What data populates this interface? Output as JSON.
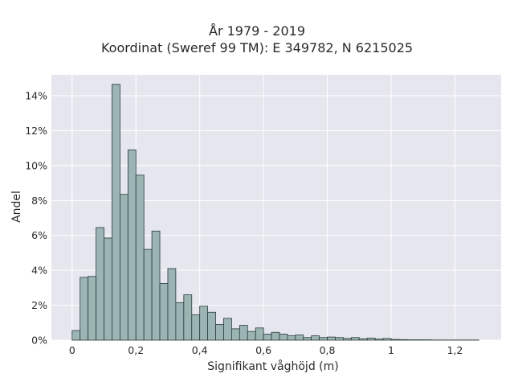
{
  "chart_data": {
    "type": "bar",
    "title_lines": [
      "År 1979 - 2019",
      "Koordinat (Sweref 99 TM): E 349782, N 6215025"
    ],
    "xlabel": "Signifikant våghöjd (m)",
    "ylabel": "Andel",
    "xlim": [
      -0.065,
      1.345
    ],
    "ylim": [
      0,
      15.2
    ],
    "x_ticks": [
      0,
      0.2,
      0.4,
      0.6,
      0.8,
      1,
      1.2
    ],
    "x_tick_labels": [
      "0",
      "0,2",
      "0,4",
      "0,6",
      "0,8",
      "1",
      "1,2"
    ],
    "y_ticks": [
      0,
      2,
      4,
      6,
      8,
      10,
      12,
      14
    ],
    "y_tick_labels": [
      "0%",
      "2%",
      "4%",
      "6%",
      "8%",
      "10%",
      "12%",
      "14%"
    ],
    "bin_width": 0.025,
    "bin_start": 0.0,
    "values": [
      0.55,
      3.6,
      3.65,
      6.45,
      5.85,
      14.65,
      8.35,
      10.9,
      9.45,
      5.2,
      6.25,
      3.25,
      4.1,
      2.15,
      2.6,
      1.45,
      1.95,
      1.6,
      0.9,
      1.25,
      0.65,
      0.85,
      0.5,
      0.7,
      0.35,
      0.45,
      0.35,
      0.25,
      0.3,
      0.15,
      0.25,
      0.15,
      0.18,
      0.15,
      0.1,
      0.15,
      0.08,
      0.12,
      0.06,
      0.1,
      0.04,
      0.03,
      0.02,
      0.02,
      0.02,
      0.01,
      0.01,
      0.01,
      0.01,
      0.01,
      0.01
    ],
    "grid": true,
    "colors": {
      "bar_fill": "#9ab5b3",
      "bar_edge": "#2b3a3a",
      "plot_bg": "#e6e6ef",
      "grid": "#ffffff"
    }
  }
}
